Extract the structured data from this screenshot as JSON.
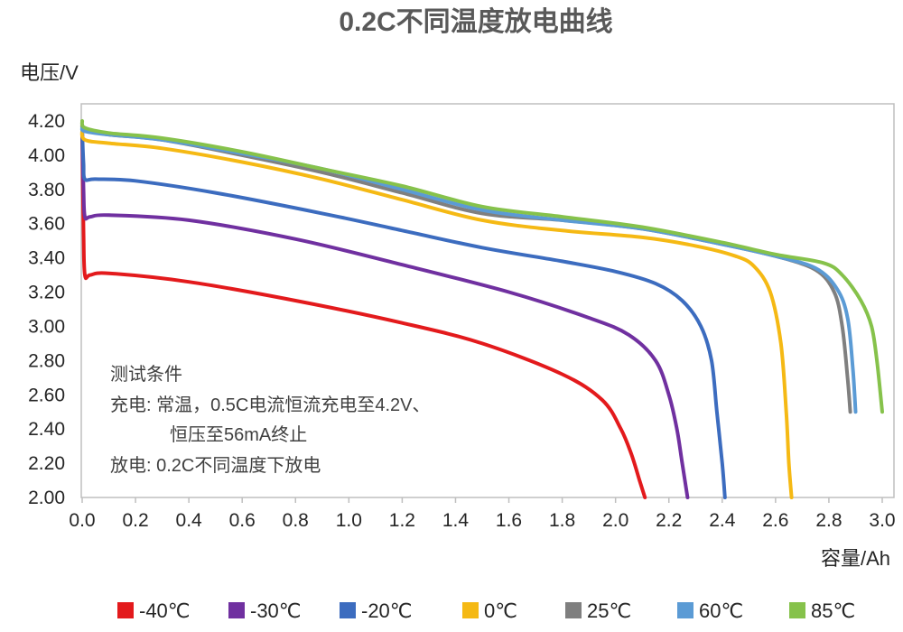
{
  "chart_data": {
    "type": "line",
    "title": "0.2C不同温度放电曲线",
    "ylabel": "电压/V",
    "xlabel": "容量/Ah",
    "xlim": [
      0.0,
      3.0
    ],
    "ylim": [
      2.0,
      4.2
    ],
    "x_ticks": [
      "0.0",
      "0.2",
      "0.4",
      "0.6",
      "0.8",
      "1.0",
      "1.2",
      "1.4",
      "1.6",
      "1.8",
      "2.0",
      "2.2",
      "2.4",
      "2.6",
      "2.8",
      "3.0"
    ],
    "y_ticks": [
      "4.20",
      "4.00",
      "3.80",
      "3.60",
      "3.40",
      "3.20",
      "3.00",
      "2.80",
      "2.60",
      "2.40",
      "2.20",
      "2.00"
    ],
    "legend_position": "bottom",
    "annotation": [
      "测试条件",
      "充电: 常温，0.5C电流恒流充电至4.2V、",
      "恒压至56mA终止",
      "放电: 0.2C不同温度下放电"
    ],
    "series": [
      {
        "name": "-40℃",
        "color": "#e31a1c",
        "points": [
          [
            0,
            4.15
          ],
          [
            0.005,
            3.55
          ],
          [
            0.01,
            3.3
          ],
          [
            0.03,
            3.3
          ],
          [
            0.1,
            3.31
          ],
          [
            0.4,
            3.26
          ],
          [
            0.8,
            3.15
          ],
          [
            1.2,
            3.02
          ],
          [
            1.5,
            2.9
          ],
          [
            1.8,
            2.72
          ],
          [
            1.95,
            2.57
          ],
          [
            2.02,
            2.4
          ],
          [
            2.06,
            2.25
          ],
          [
            2.09,
            2.1
          ],
          [
            2.11,
            2.0
          ]
        ]
      },
      {
        "name": "-30℃",
        "color": "#7030a0",
        "points": [
          [
            0,
            4.15
          ],
          [
            0.005,
            3.8
          ],
          [
            0.01,
            3.64
          ],
          [
            0.03,
            3.64
          ],
          [
            0.1,
            3.65
          ],
          [
            0.4,
            3.62
          ],
          [
            0.8,
            3.51
          ],
          [
            1.2,
            3.36
          ],
          [
            1.6,
            3.2
          ],
          [
            1.9,
            3.05
          ],
          [
            2.05,
            2.95
          ],
          [
            2.15,
            2.8
          ],
          [
            2.2,
            2.6
          ],
          [
            2.23,
            2.4
          ],
          [
            2.25,
            2.2
          ],
          [
            2.27,
            2.0
          ]
        ]
      },
      {
        "name": "-20℃",
        "color": "#3c6cbf",
        "points": [
          [
            0,
            4.15
          ],
          [
            0.005,
            3.95
          ],
          [
            0.01,
            3.86
          ],
          [
            0.05,
            3.86
          ],
          [
            0.2,
            3.85
          ],
          [
            0.5,
            3.78
          ],
          [
            0.9,
            3.66
          ],
          [
            1.2,
            3.56
          ],
          [
            1.5,
            3.46
          ],
          [
            1.8,
            3.38
          ],
          [
            2.0,
            3.32
          ],
          [
            2.15,
            3.25
          ],
          [
            2.25,
            3.15
          ],
          [
            2.32,
            3.0
          ],
          [
            2.36,
            2.8
          ],
          [
            2.38,
            2.5
          ],
          [
            2.4,
            2.2
          ],
          [
            2.41,
            2.0
          ]
        ]
      },
      {
        "name": "0℃",
        "color": "#f5b914",
        "points": [
          [
            0,
            4.15
          ],
          [
            0.01,
            4.09
          ],
          [
            0.1,
            4.07
          ],
          [
            0.3,
            4.04
          ],
          [
            0.6,
            3.96
          ],
          [
            0.9,
            3.86
          ],
          [
            1.2,
            3.74
          ],
          [
            1.5,
            3.62
          ],
          [
            1.8,
            3.56
          ],
          [
            2.1,
            3.52
          ],
          [
            2.3,
            3.47
          ],
          [
            2.45,
            3.41
          ],
          [
            2.52,
            3.35
          ],
          [
            2.58,
            3.2
          ],
          [
            2.62,
            2.9
          ],
          [
            2.64,
            2.5
          ],
          [
            2.65,
            2.2
          ],
          [
            2.66,
            2.0
          ]
        ]
      },
      {
        "name": "25℃",
        "color": "#7f7f7f",
        "points": [
          [
            0,
            4.18
          ],
          [
            0.01,
            4.15
          ],
          [
            0.1,
            4.12
          ],
          [
            0.3,
            4.09
          ],
          [
            0.6,
            4.0
          ],
          [
            0.9,
            3.9
          ],
          [
            1.2,
            3.78
          ],
          [
            1.5,
            3.66
          ],
          [
            1.8,
            3.62
          ],
          [
            2.1,
            3.57
          ],
          [
            2.4,
            3.48
          ],
          [
            2.6,
            3.41
          ],
          [
            2.75,
            3.33
          ],
          [
            2.82,
            3.2
          ],
          [
            2.85,
            3.0
          ],
          [
            2.87,
            2.7
          ],
          [
            2.88,
            2.5
          ]
        ]
      },
      {
        "name": "60℃",
        "color": "#5b9bd5",
        "points": [
          [
            0,
            4.16
          ],
          [
            0.01,
            4.14
          ],
          [
            0.1,
            4.12
          ],
          [
            0.3,
            4.09
          ],
          [
            0.6,
            4.01
          ],
          [
            0.9,
            3.92
          ],
          [
            1.2,
            3.8
          ],
          [
            1.5,
            3.68
          ],
          [
            1.8,
            3.62
          ],
          [
            2.1,
            3.57
          ],
          [
            2.4,
            3.48
          ],
          [
            2.6,
            3.41
          ],
          [
            2.75,
            3.34
          ],
          [
            2.83,
            3.22
          ],
          [
            2.87,
            3.05
          ],
          [
            2.89,
            2.75
          ],
          [
            2.9,
            2.5
          ]
        ]
      },
      {
        "name": "85℃",
        "color": "#86c24b",
        "points": [
          [
            0,
            4.2
          ],
          [
            0.01,
            4.16
          ],
          [
            0.1,
            4.13
          ],
          [
            0.3,
            4.1
          ],
          [
            0.6,
            4.02
          ],
          [
            0.9,
            3.92
          ],
          [
            1.2,
            3.82
          ],
          [
            1.5,
            3.7
          ],
          [
            1.8,
            3.64
          ],
          [
            2.1,
            3.58
          ],
          [
            2.4,
            3.49
          ],
          [
            2.6,
            3.42
          ],
          [
            2.78,
            3.37
          ],
          [
            2.85,
            3.3
          ],
          [
            2.92,
            3.15
          ],
          [
            2.96,
            3.0
          ],
          [
            2.98,
            2.8
          ],
          [
            3.0,
            2.5
          ]
        ]
      }
    ]
  }
}
